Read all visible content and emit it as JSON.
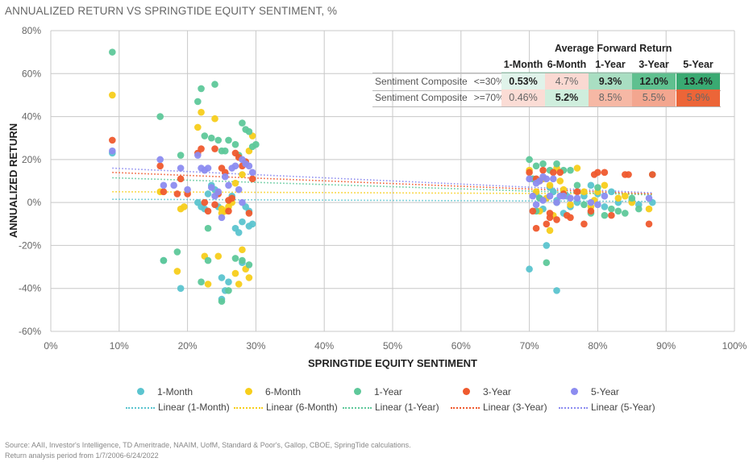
{
  "chart_data": {
    "type": "scatter",
    "title": "ANNUALIZED RETURN VS SPRINGTIDE EQUITY SENTIMENT, %",
    "xlabel": "SPRINGTIDE EQUITY SENTIMENT",
    "ylabel": "ANNUALIZED RETURN",
    "xlim": [
      0,
      100
    ],
    "ylim": [
      -60,
      80
    ],
    "x_ticks": [
      "0%",
      "10%",
      "20%",
      "30%",
      "40%",
      "50%",
      "60%",
      "70%",
      "80%",
      "90%",
      "100%"
    ],
    "y_ticks": [
      "80%",
      "60%",
      "40%",
      "20%",
      "0%",
      "-20%",
      "-40%",
      "-60%"
    ],
    "grid": true,
    "legend_position": "bottom",
    "series": [
      {
        "name": "1-Month",
        "color": "#5BC4CF",
        "points": [
          [
            9,
            23
          ],
          [
            16.5,
            -27
          ],
          [
            19,
            -40
          ],
          [
            21.5,
            0
          ],
          [
            22.5,
            -3
          ],
          [
            23,
            4
          ],
          [
            24,
            6
          ],
          [
            24.5,
            -2
          ],
          [
            25,
            -35
          ],
          [
            25,
            -45
          ],
          [
            25.5,
            -41
          ],
          [
            26,
            -37
          ],
          [
            26.5,
            3
          ],
          [
            27,
            -12
          ],
          [
            27.5,
            -14
          ],
          [
            28,
            -9
          ],
          [
            28,
            -28
          ],
          [
            28.5,
            -2
          ],
          [
            29,
            -4
          ],
          [
            29,
            -11
          ],
          [
            29.5,
            -10
          ],
          [
            22,
            -2
          ],
          [
            23.5,
            8
          ],
          [
            70,
            -31
          ],
          [
            71,
            4
          ],
          [
            72,
            -3
          ],
          [
            72.5,
            -20
          ],
          [
            73,
            7
          ],
          [
            74,
            -41
          ],
          [
            74,
            1
          ],
          [
            75,
            -5
          ],
          [
            75.5,
            3
          ],
          [
            76,
            -2
          ],
          [
            77,
            0
          ],
          [
            78,
            3
          ],
          [
            79,
            8
          ],
          [
            80,
            4
          ],
          [
            81,
            -2
          ],
          [
            82,
            5
          ],
          [
            83,
            0
          ],
          [
            85,
            1
          ],
          [
            86,
            -1
          ],
          [
            88,
            0
          ],
          [
            72,
            11
          ],
          [
            71.5,
            2
          ],
          [
            73.5,
            5
          ]
        ]
      },
      {
        "name": "6-Month",
        "color": "#F7CE1B",
        "points": [
          [
            9,
            50
          ],
          [
            16,
            5
          ],
          [
            18.5,
            -32
          ],
          [
            19,
            -3
          ],
          [
            19.5,
            -2
          ],
          [
            21.5,
            35
          ],
          [
            22,
            42
          ],
          [
            22.5,
            -25
          ],
          [
            23,
            -38
          ],
          [
            24,
            39
          ],
          [
            24.5,
            -25
          ],
          [
            25,
            -3
          ],
          [
            25,
            -5
          ],
          [
            25.5,
            -4
          ],
          [
            26,
            -2
          ],
          [
            26.5,
            0
          ],
          [
            27,
            -33
          ],
          [
            27.5,
            -38
          ],
          [
            28,
            -22
          ],
          [
            28.5,
            -31
          ],
          [
            29,
            -35
          ],
          [
            29,
            24
          ],
          [
            29.5,
            31
          ],
          [
            28,
            13
          ],
          [
            27,
            9
          ],
          [
            70,
            15
          ],
          [
            71,
            5
          ],
          [
            71.5,
            -4
          ],
          [
            72,
            11
          ],
          [
            72.5,
            2
          ],
          [
            73,
            -13
          ],
          [
            73.5,
            -6
          ],
          [
            74,
            16
          ],
          [
            75,
            6
          ],
          [
            76,
            -1
          ],
          [
            77,
            16
          ],
          [
            78,
            5
          ],
          [
            79,
            -2
          ],
          [
            79.5,
            1
          ],
          [
            80,
            5
          ],
          [
            81,
            8
          ],
          [
            83,
            2
          ],
          [
            84,
            3
          ],
          [
            85,
            0
          ],
          [
            87.5,
            -3
          ],
          [
            73,
            8
          ],
          [
            74.5,
            10
          ]
        ]
      },
      {
        "name": "1-Year",
        "color": "#5EC89A",
        "points": [
          [
            9,
            70
          ],
          [
            16,
            40
          ],
          [
            16.5,
            -27
          ],
          [
            18.5,
            -23
          ],
          [
            19,
            22
          ],
          [
            21.5,
            47
          ],
          [
            22,
            53
          ],
          [
            22.5,
            31
          ],
          [
            23,
            -12
          ],
          [
            23.5,
            30
          ],
          [
            24,
            55
          ],
          [
            24.5,
            29
          ],
          [
            25,
            24
          ],
          [
            25.5,
            24
          ],
          [
            26,
            29
          ],
          [
            27,
            27
          ],
          [
            27.5,
            22
          ],
          [
            28,
            37
          ],
          [
            28.5,
            34
          ],
          [
            29,
            33
          ],
          [
            29.5,
            26
          ],
          [
            30,
            27
          ],
          [
            27,
            -26
          ],
          [
            28,
            -27
          ],
          [
            29,
            -29
          ],
          [
            25,
            -46
          ],
          [
            26,
            -41
          ],
          [
            23,
            -27
          ],
          [
            22,
            -37
          ],
          [
            70,
            20
          ],
          [
            70.5,
            11
          ],
          [
            71,
            17
          ],
          [
            71.5,
            2
          ],
          [
            72,
            18
          ],
          [
            72.5,
            -28
          ],
          [
            73,
            15
          ],
          [
            74,
            18
          ],
          [
            75,
            15
          ],
          [
            76,
            15
          ],
          [
            77,
            8
          ],
          [
            78,
            -1
          ],
          [
            79,
            -5
          ],
          [
            80,
            7
          ],
          [
            81,
            -6
          ],
          [
            82,
            -3
          ],
          [
            83,
            -4
          ],
          [
            84,
            -5
          ],
          [
            85,
            2
          ],
          [
            86,
            -3
          ],
          [
            88,
            13
          ],
          [
            71,
            -4
          ],
          [
            74,
            0
          ]
        ]
      },
      {
        "name": "3-Year",
        "color": "#EF5A2E",
        "points": [
          [
            9,
            29
          ],
          [
            16,
            17
          ],
          [
            16.5,
            5
          ],
          [
            18.5,
            4
          ],
          [
            19,
            11
          ],
          [
            20,
            4
          ],
          [
            21.5,
            23
          ],
          [
            22,
            25
          ],
          [
            22.5,
            0
          ],
          [
            23,
            -4
          ],
          [
            24,
            25
          ],
          [
            24.5,
            4
          ],
          [
            25,
            16
          ],
          [
            25.5,
            14
          ],
          [
            26,
            1
          ],
          [
            26.5,
            2
          ],
          [
            27,
            23
          ],
          [
            27.5,
            21
          ],
          [
            28,
            17
          ],
          [
            28.5,
            19
          ],
          [
            29,
            -5
          ],
          [
            29.5,
            11
          ],
          [
            24,
            -1
          ],
          [
            26,
            -4
          ],
          [
            70,
            14
          ],
          [
            70.5,
            -4
          ],
          [
            71,
            -12
          ],
          [
            71.5,
            10
          ],
          [
            72,
            15
          ],
          [
            72.5,
            -10
          ],
          [
            73,
            -5
          ],
          [
            73.5,
            14
          ],
          [
            74,
            -8
          ],
          [
            74.5,
            14
          ],
          [
            75,
            4
          ],
          [
            75.5,
            -6
          ],
          [
            76,
            -7
          ],
          [
            77,
            5
          ],
          [
            78,
            -10
          ],
          [
            79,
            -4
          ],
          [
            79.5,
            13
          ],
          [
            80,
            14
          ],
          [
            81,
            14
          ],
          [
            82,
            -6
          ],
          [
            84,
            13
          ],
          [
            84.5,
            13
          ],
          [
            87.5,
            -10
          ],
          [
            88,
            13
          ],
          [
            71,
            11
          ],
          [
            73,
            -7
          ]
        ]
      },
      {
        "name": "5-Year",
        "color": "#8C8CF0",
        "points": [
          [
            9,
            24
          ],
          [
            16,
            20
          ],
          [
            16.5,
            8
          ],
          [
            18,
            8
          ],
          [
            19,
            16
          ],
          [
            20,
            6
          ],
          [
            21.5,
            22
          ],
          [
            22,
            16
          ],
          [
            22.5,
            15
          ],
          [
            23,
            16
          ],
          [
            23.5,
            7
          ],
          [
            24,
            3
          ],
          [
            24.5,
            5
          ],
          [
            25,
            -7
          ],
          [
            25.5,
            12
          ],
          [
            26,
            8
          ],
          [
            26.5,
            16
          ],
          [
            27,
            17
          ],
          [
            27.5,
            6
          ],
          [
            28,
            20
          ],
          [
            28.5,
            18
          ],
          [
            29,
            17
          ],
          [
            29.5,
            14
          ],
          [
            28,
            0
          ],
          [
            70,
            11
          ],
          [
            70.5,
            3
          ],
          [
            71,
            9
          ],
          [
            71.5,
            10
          ],
          [
            72,
            1
          ],
          [
            72.5,
            11
          ],
          [
            73,
            3
          ],
          [
            73.5,
            11
          ],
          [
            74,
            0
          ],
          [
            74.5,
            3
          ],
          [
            75,
            3
          ],
          [
            76,
            2
          ],
          [
            77,
            2
          ],
          [
            79,
            0
          ],
          [
            80,
            -1
          ],
          [
            81,
            3
          ],
          [
            87.5,
            2
          ],
          [
            72,
            12
          ],
          [
            71,
            -1
          ]
        ]
      }
    ],
    "trendlines": [
      {
        "name": "Linear (1-Month)",
        "color": "#5BC4CF",
        "from": [
          9,
          1.5
        ],
        "to": [
          88,
          0.5
        ]
      },
      {
        "name": "Linear (6-Month)",
        "color": "#F7CE1B",
        "from": [
          9,
          5
        ],
        "to": [
          88,
          4
        ]
      },
      {
        "name": "Linear (1-Year)",
        "color": "#5EC89A",
        "from": [
          9,
          11.5
        ],
        "to": [
          88,
          3.5
        ]
      },
      {
        "name": "Linear (3-Year)",
        "color": "#EF5A2E",
        "from": [
          9,
          14
        ],
        "to": [
          88,
          4
        ]
      },
      {
        "name": "Linear (5-Year)",
        "color": "#8C8CF0",
        "from": [
          9,
          16
        ],
        "to": [
          88,
          4.5
        ]
      }
    ]
  },
  "table": {
    "title": "Average Forward Return",
    "columns": [
      "1-Month",
      "6-Month",
      "1-Year",
      "3-Year",
      "5-Year"
    ],
    "rows": [
      {
        "label": "Sentiment Composite",
        "condition": "<=30%",
        "values": [
          "0.53%",
          "4.7%",
          "9.3%",
          "12.0%",
          "13.4%"
        ],
        "colors": [
          "#E0F3EA",
          "#FAD9D2",
          "#A9DEC2",
          "#5FC08F",
          "#3AAA72"
        ],
        "bold": [
          true,
          false,
          true,
          true,
          true
        ]
      },
      {
        "label": "Sentiment Composite",
        "condition": ">=70%",
        "values": [
          "0.46%",
          "5.2%",
          "8.5%",
          "5.5%",
          "5.9%"
        ],
        "colors": [
          "#FBDCD5",
          "#CFEEDD",
          "#F6B8A5",
          "#F3A68F",
          "#EC6538"
        ],
        "bold": [
          false,
          true,
          false,
          false,
          false
        ]
      }
    ]
  },
  "legend": {
    "markers": [
      {
        "label": "1-Month",
        "color": "#5BC4CF"
      },
      {
        "label": "6-Month",
        "color": "#F7CE1B"
      },
      {
        "label": "1-Year",
        "color": "#5EC89A"
      },
      {
        "label": "3-Year",
        "color": "#EF5A2E"
      },
      {
        "label": "5-Year",
        "color": "#8C8CF0"
      }
    ],
    "lines": [
      {
        "label": "Linear (1-Month)",
        "color": "#5BC4CF"
      },
      {
        "label": "Linear (6-Month)",
        "color": "#F7CE1B"
      },
      {
        "label": "Linear (1-Year)",
        "color": "#5EC89A"
      },
      {
        "label": "Linear (3-Year)",
        "color": "#EF5A2E"
      },
      {
        "label": "Linear (5-Year)",
        "color": "#8C8CF0"
      }
    ]
  },
  "footer": {
    "source": "Source: AAII, Investor's Intelligence, TD Ameritrade, NAAIM, UofM, Standard & Poor's, Gallop, CBOE, SpringTide calculations.",
    "period": "Return analysis period from 1/7/2006-6/24/2022"
  }
}
